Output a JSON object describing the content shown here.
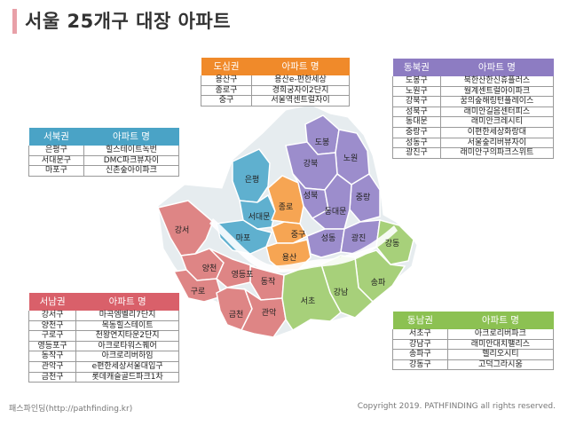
{
  "title": "서울 25개구 대장 아파트",
  "colors": {
    "central": "#f08a2a",
    "northeast": "#8d7cc2",
    "northwest": "#4aa3c6",
    "southwest": "#d9606a",
    "southeast": "#8cc152"
  },
  "map": {
    "districts": {
      "dobong": "도봉",
      "nowon": "노원",
      "gangbuk": "강북",
      "seongbuk": "성북",
      "jungnang": "중랑",
      "dongdaemun": "동대문",
      "seongdong": "성동",
      "gwangjin": "광진",
      "eunpyeong": "은평",
      "seodaemun": "서대문",
      "jongno": "종로",
      "jung": "중구",
      "yongsan": "용산",
      "mapo": "마포",
      "gangseo": "강서",
      "yangcheon": "양천",
      "guro": "구로",
      "yeongdeungpo": "영등포",
      "dongjak": "동작",
      "geumcheon": "금천",
      "gwanak": "관악",
      "seocho": "서초",
      "gangnam": "강남",
      "songpa": "송파",
      "gangdong": "강동"
    }
  },
  "tables": {
    "central": {
      "header_region": "도심권",
      "header_apt": "아파트 명",
      "rows": [
        {
          "district": "용산구",
          "apt": "용산e-편한세상"
        },
        {
          "district": "종로구",
          "apt": "경희궁자이2단지"
        },
        {
          "district": "중구",
          "apt": "서울역센트럴자이"
        }
      ]
    },
    "northeast": {
      "header_region": "동북권",
      "header_apt": "아파트 명",
      "rows": [
        {
          "district": "도봉구",
          "apt": "북한산한신휴플러스"
        },
        {
          "district": "노원구",
          "apt": "월계센트럴아이파크"
        },
        {
          "district": "강북구",
          "apt": "꿈의숲해링턴플레이스"
        },
        {
          "district": "성북구",
          "apt": "래미안길음센터피스"
        },
        {
          "district": "동대문",
          "apt": "래미안크레시티"
        },
        {
          "district": "중랑구",
          "apt": "이편한세상화랑대"
        },
        {
          "district": "성동구",
          "apt": "서울숲리버뷰자이"
        },
        {
          "district": "광진구",
          "apt": "래미안구의파크스위트"
        }
      ]
    },
    "northwest": {
      "header_region": "서북권",
      "header_apt": "아파트 명",
      "rows": [
        {
          "district": "은평구",
          "apt": "힐스테이트녹번"
        },
        {
          "district": "서대문구",
          "apt": "DMC파크뷰자이"
        },
        {
          "district": "마포구",
          "apt": "신촌숲아이파크"
        }
      ]
    },
    "southwest": {
      "header_region": "서남권",
      "header_apt": "아파트 명",
      "rows": [
        {
          "district": "강서구",
          "apt": "마곡엠벨리7단지"
        },
        {
          "district": "양천구",
          "apt": "목동힐스테이트"
        },
        {
          "district": "구로구",
          "apt": "천왕연지타운2단지"
        },
        {
          "district": "영등포구",
          "apt": "아크로타워스퀘어"
        },
        {
          "district": "동작구",
          "apt": "아크로리버하임"
        },
        {
          "district": "관악구",
          "apt": "e편한세상서울대입구"
        },
        {
          "district": "금천구",
          "apt": "롯데캐슬골드파크1차"
        }
      ]
    },
    "southeast": {
      "header_region": "동남권",
      "header_apt": "아파트 명",
      "rows": [
        {
          "district": "서초구",
          "apt": "아크로리버파크"
        },
        {
          "district": "강남구",
          "apt": "래미안대치팰리스"
        },
        {
          "district": "송파구",
          "apt": "헬리오시티"
        },
        {
          "district": "강동구",
          "apt": "고덕그라시움"
        }
      ]
    }
  },
  "footer": {
    "left": "패스파인딩(http://pathfinding.kr)",
    "right": "Copyright 2019. PATHFINDING all rights reserved."
  }
}
